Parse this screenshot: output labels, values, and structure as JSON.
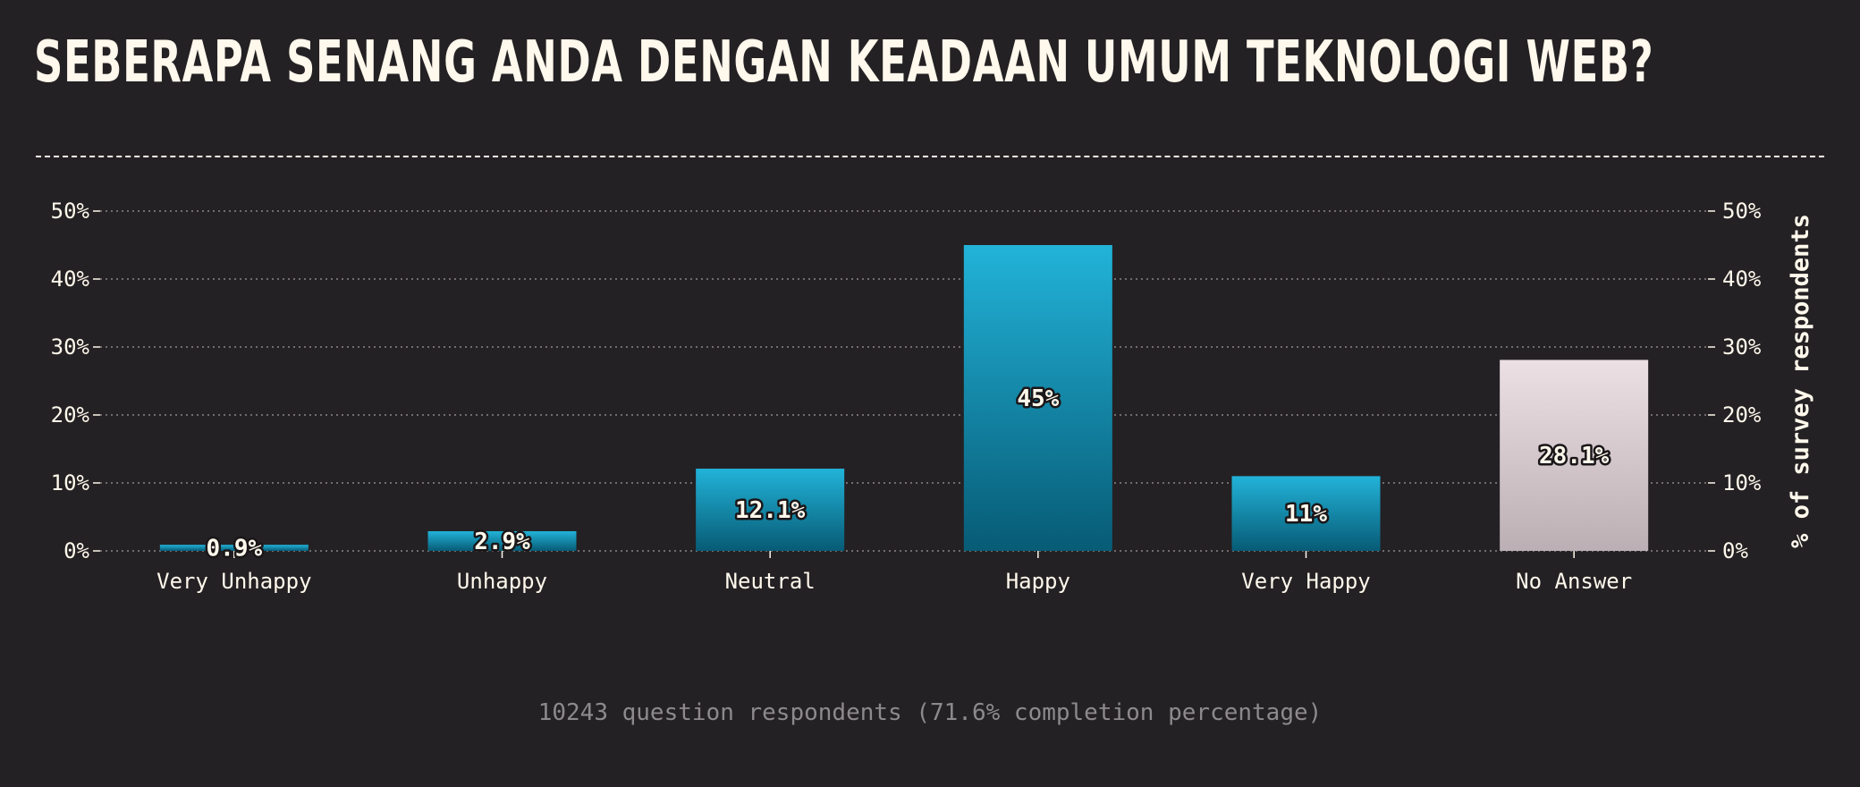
{
  "header": {
    "title": "SEBERAPA SENANG ANDA DENGAN KEADAAN UMUM TEKNOLOGI WEB?"
  },
  "footer": {
    "note": "10243 question respondents (71.6% completion percentage)"
  },
  "colors": {
    "background": "#242124",
    "text": "#fff8ec",
    "bar_top": "#22b3d9",
    "bar_bottom": "#075b75",
    "no_answer_top": "#ece0e4",
    "no_answer_bottom": "#bbafb4",
    "muted": "#8d8a8c"
  },
  "chart_data": {
    "type": "bar",
    "title": "SEBERAPA SENANG ANDA DENGAN KEADAAN UMUM TEKNOLOGI WEB?",
    "categories": [
      "Very Unhappy",
      "Unhappy",
      "Neutral",
      "Happy",
      "Very Happy",
      "No Answer"
    ],
    "values": [
      0.9,
      2.9,
      12.1,
      45,
      11,
      28.1
    ],
    "data_labels": [
      "0.9%",
      "2.9%",
      "12.1%",
      "45%",
      "11%",
      "28.1%"
    ],
    "ylabel": "% of survey respondents",
    "ylim": [
      0,
      50
    ],
    "y_ticks": [
      0,
      10,
      20,
      30,
      40,
      50
    ],
    "y_tick_labels": [
      "0%",
      "10%",
      "20%",
      "30%",
      "40%",
      "50%"
    ],
    "grid": true,
    "legend": "none"
  }
}
